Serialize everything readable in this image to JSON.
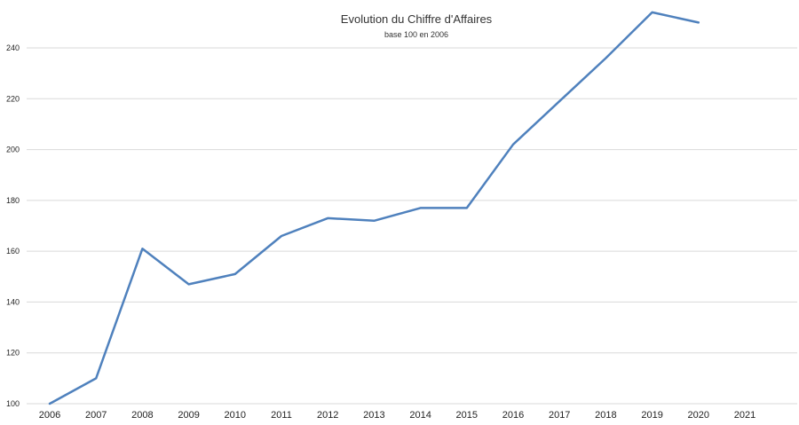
{
  "chart_data": {
    "type": "line",
    "title": "Evolution du Chiffre d'Affaires",
    "subtitle": "base 100 en 2006",
    "xlabel": "",
    "ylabel": "",
    "x": [
      "2006",
      "2007",
      "2008",
      "2009",
      "2010",
      "2011",
      "2012",
      "2013",
      "2014",
      "2015",
      "2016",
      "2017",
      "2018",
      "2019",
      "2020",
      "2021"
    ],
    "ylim": [
      100,
      250
    ],
    "yticks": [
      100,
      120,
      140,
      160,
      180,
      200,
      220,
      240
    ],
    "grid": true,
    "legend": "none",
    "series": [
      {
        "color": "#4f81bd",
        "values": [
          100,
          110,
          161,
          147,
          151,
          166,
          173,
          172,
          177,
          177,
          202,
          219,
          236,
          254,
          250,
          null
        ]
      }
    ]
  }
}
